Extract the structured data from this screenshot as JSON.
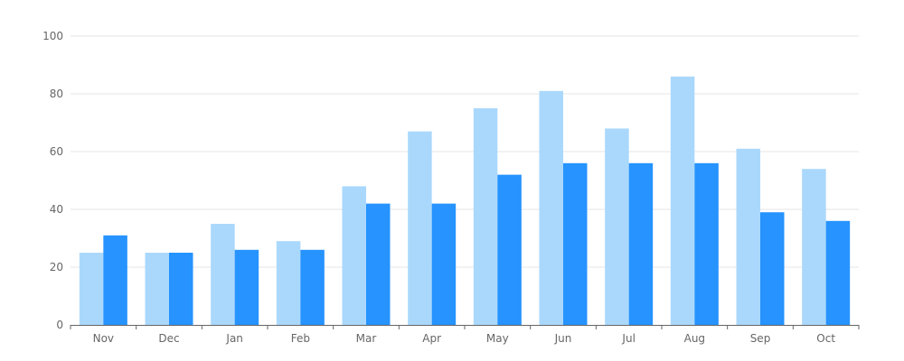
{
  "chart_data": {
    "type": "bar",
    "categories": [
      "Nov",
      "Dec",
      "Jan",
      "Feb",
      "Mar",
      "Apr",
      "May",
      "Jun",
      "Jul",
      "Aug",
      "Sep",
      "Oct"
    ],
    "series": [
      {
        "values": [
          25,
          25,
          35,
          29,
          48,
          67,
          75,
          81,
          68,
          86,
          61,
          54
        ],
        "color": "#aad8fc"
      },
      {
        "values": [
          31,
          25,
          26,
          26,
          42,
          42,
          52,
          56,
          56,
          56,
          39,
          36
        ],
        "color": "#2693ff"
      }
    ],
    "yticks": [
      0,
      20,
      40,
      60,
      80,
      100
    ],
    "ylim": [
      0,
      100
    ],
    "grid": true,
    "title": "",
    "xlabel": "",
    "ylabel": ""
  }
}
